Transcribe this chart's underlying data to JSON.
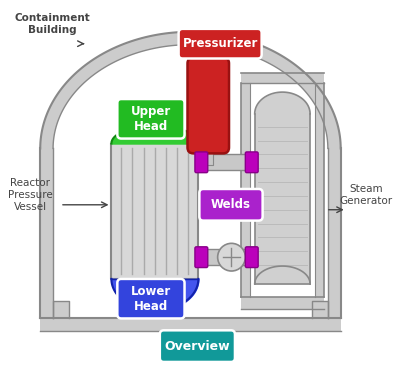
{
  "bg_color": "#ffffff",
  "containment_label": "Containment\nBuilding",
  "rpv_label": "Reactor\nPressure\nVessel",
  "steam_gen_label": "Steam\nGenerator",
  "upper_head_label": "Upper\nHead",
  "lower_head_label": "Lower\nHead",
  "pressurizer_label": "Pressurizer",
  "welds_label": "Welds",
  "overview_label": "Overview",
  "wall_color": "#cccccc",
  "wall_edge": "#888888",
  "vessel_fill": "#d8d8d8",
  "sg_fill": "#d0d0d0",
  "pipe_fill": "#c8c8c8",
  "upper_head_bg": "#22bb22",
  "lower_head_bg": "#3344dd",
  "pressurizer_bg": "#cc2222",
  "welds_bg": "#aa22cc",
  "overview_bg": "#119999",
  "weld_color": "#bb00bb",
  "upper_dome_color": "#33cc33",
  "lower_dome_color": "#4455ee",
  "text_color": "#444444"
}
